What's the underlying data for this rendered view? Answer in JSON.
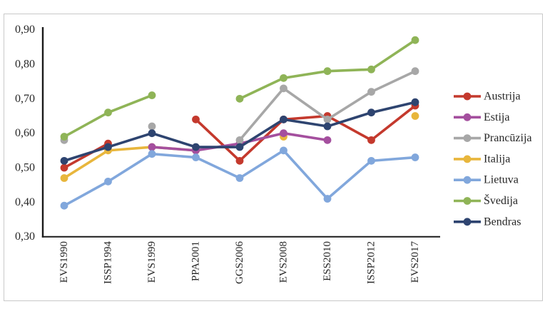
{
  "chart": {
    "frame_color": "#c9c9c9",
    "axis_color": "#1a1a1a",
    "text_color": "#262626",
    "background": "#ffffff"
  },
  "chart_data": {
    "type": "line",
    "title": "",
    "xlabel": "",
    "ylabel": "",
    "grid": false,
    "legend_position": "right",
    "decimal_separator": ",",
    "ylim": [
      0.3,
      0.9
    ],
    "y_tick_step": 0.1,
    "y_tick_labels": [
      "0,90",
      "0,80",
      "0,70",
      "0,60",
      "0,50",
      "0,40",
      "0,30"
    ],
    "y_tick_values": [
      0.9,
      0.8,
      0.7,
      0.6,
      0.5,
      0.4,
      0.3
    ],
    "categories": [
      "EVS1990",
      "ISSP1994",
      "EVS1999",
      "PPA2001",
      "GGS2006",
      "EVS2008",
      "ESS2010",
      "ISSP2012",
      "EVS2017"
    ],
    "series": [
      {
        "name": "Austrija",
        "color": "#C4392D",
        "values": [
          0.5,
          0.57,
          null,
          0.64,
          0.52,
          0.64,
          0.65,
          0.58,
          0.68
        ]
      },
      {
        "name": "Estija",
        "color": "#A44F9E",
        "values": [
          null,
          null,
          0.56,
          0.55,
          0.57,
          0.6,
          0.58,
          null,
          null
        ]
      },
      {
        "name": "Prancūzija",
        "color": "#A7A7A7",
        "values": [
          0.58,
          null,
          0.62,
          null,
          0.58,
          0.73,
          0.64,
          0.72,
          0.78
        ]
      },
      {
        "name": "Italija",
        "color": "#E8B63C",
        "values": [
          0.47,
          0.55,
          0.56,
          0.55,
          null,
          0.59,
          null,
          null,
          0.65
        ]
      },
      {
        "name": "Lietuva",
        "color": "#81A7DC",
        "values": [
          0.39,
          0.46,
          0.54,
          0.53,
          0.47,
          0.55,
          0.41,
          0.52,
          0.53
        ]
      },
      {
        "name": "Švedija",
        "color": "#8FB457",
        "values": [
          0.59,
          0.66,
          0.71,
          null,
          0.7,
          0.76,
          0.78,
          0.785,
          0.87
        ]
      },
      {
        "name": "Bendras",
        "color": "#2E4470",
        "values": [
          0.52,
          0.56,
          0.6,
          0.56,
          0.56,
          0.64,
          0.62,
          0.66,
          0.69
        ]
      }
    ]
  }
}
